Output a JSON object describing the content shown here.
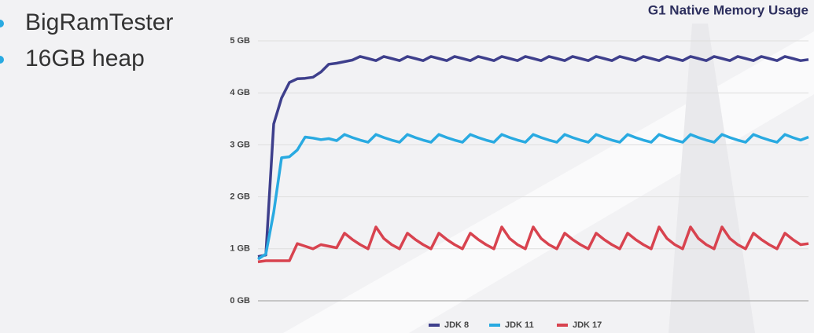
{
  "slide": {
    "bullets": [
      "BigRamTester",
      "16GB heap"
    ]
  },
  "chart_data": {
    "type": "line",
    "title": "G1 Native Memory Usage",
    "ylim": [
      0,
      5
    ],
    "yticks": [
      {
        "value": 0,
        "label": "0 GB"
      },
      {
        "value": 1,
        "label": "1 GB"
      },
      {
        "value": 2,
        "label": "2 GB"
      },
      {
        "value": 3,
        "label": "3 GB"
      },
      {
        "value": 4,
        "label": "4 GB"
      },
      {
        "value": 5,
        "label": "5 GB"
      }
    ],
    "grid": true,
    "legend": "bottom",
    "series": [
      {
        "name": "JDK 8",
        "color": "#3e3f8c",
        "values": [
          0.85,
          0.88,
          3.4,
          3.9,
          4.2,
          4.27,
          4.28,
          4.3,
          4.4,
          4.55,
          4.57,
          4.6,
          4.63,
          4.7,
          4.66,
          4.62,
          4.7,
          4.66,
          4.62,
          4.7,
          4.66,
          4.62,
          4.7,
          4.66,
          4.62,
          4.7,
          4.66,
          4.62,
          4.7,
          4.66,
          4.62,
          4.7,
          4.66,
          4.62,
          4.7,
          4.66,
          4.62,
          4.7,
          4.66,
          4.62,
          4.7,
          4.66,
          4.62,
          4.7,
          4.66,
          4.62,
          4.7,
          4.66,
          4.62,
          4.7,
          4.66,
          4.62,
          4.7,
          4.66,
          4.62,
          4.7,
          4.66,
          4.62,
          4.7,
          4.66,
          4.62,
          4.7,
          4.66,
          4.62,
          4.7,
          4.66,
          4.62,
          4.7,
          4.66,
          4.62,
          4.64
        ]
      },
      {
        "name": "JDK 11",
        "color": "#29aae1",
        "values": [
          0.8,
          0.9,
          1.7,
          2.75,
          2.77,
          2.9,
          3.15,
          3.13,
          3.1,
          3.12,
          3.08,
          3.2,
          3.14,
          3.09,
          3.05,
          3.2,
          3.14,
          3.09,
          3.05,
          3.2,
          3.14,
          3.09,
          3.05,
          3.2,
          3.14,
          3.09,
          3.05,
          3.2,
          3.14,
          3.09,
          3.05,
          3.2,
          3.14,
          3.09,
          3.05,
          3.2,
          3.14,
          3.09,
          3.05,
          3.2,
          3.14,
          3.09,
          3.05,
          3.2,
          3.14,
          3.09,
          3.05,
          3.2,
          3.14,
          3.09,
          3.05,
          3.2,
          3.14,
          3.09,
          3.05,
          3.2,
          3.14,
          3.09,
          3.05,
          3.2,
          3.14,
          3.09,
          3.05,
          3.2,
          3.14,
          3.09,
          3.05,
          3.2,
          3.14,
          3.09,
          3.15
        ]
      },
      {
        "name": "JDK 17",
        "color": "#d8434f",
        "values": [
          0.75,
          0.77,
          0.77,
          0.77,
          0.77,
          1.1,
          1.05,
          1.0,
          1.08,
          1.05,
          1.02,
          1.3,
          1.18,
          1.08,
          1.0,
          1.42,
          1.2,
          1.08,
          1.0,
          1.3,
          1.18,
          1.08,
          1.0,
          1.3,
          1.18,
          1.08,
          1.0,
          1.3,
          1.18,
          1.08,
          1.0,
          1.42,
          1.2,
          1.08,
          1.0,
          1.42,
          1.2,
          1.08,
          1.0,
          1.3,
          1.18,
          1.08,
          1.0,
          1.3,
          1.18,
          1.08,
          1.0,
          1.3,
          1.18,
          1.08,
          1.0,
          1.42,
          1.2,
          1.08,
          1.0,
          1.42,
          1.2,
          1.08,
          1.0,
          1.42,
          1.2,
          1.08,
          1.0,
          1.3,
          1.18,
          1.08,
          1.0,
          1.3,
          1.18,
          1.08,
          1.1
        ]
      }
    ]
  }
}
